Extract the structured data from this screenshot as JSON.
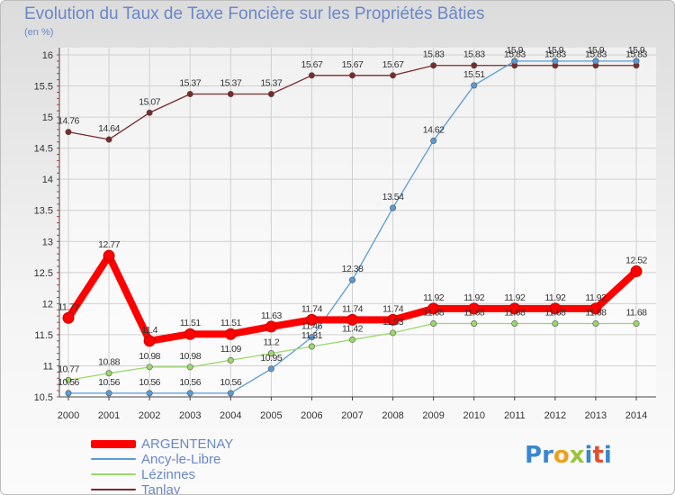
{
  "title": "Evolution du Taux de Taxe Foncière sur les Propriétés Bâties",
  "unit_label": "(en %)",
  "logo": {
    "text": "Proxiti",
    "letters": [
      "P",
      "r",
      "o",
      "x",
      "i",
      "t",
      "i"
    ],
    "colors": [
      "#3a86d1",
      "#3a86d1",
      "#f0a020",
      "#9ac43a",
      "#3a86d1",
      "#e05030",
      "#3a86d1"
    ]
  },
  "chart_data": {
    "type": "line",
    "title": "Evolution du Taux de Taxe Foncière sur les Propriétés Bâties",
    "ylabel": "(en %)",
    "xlabel": "",
    "ylim": [
      10.5,
      16
    ],
    "yticks": [
      10.5,
      11,
      11.5,
      12,
      12.5,
      13,
      13.5,
      14,
      14.5,
      15,
      15.5,
      16
    ],
    "x": [
      2000,
      2001,
      2002,
      2003,
      2004,
      2005,
      2006,
      2007,
      2008,
      2009,
      2010,
      2011,
      2012,
      2013,
      2014
    ],
    "series": [
      {
        "name": "Tanlay",
        "color": "#7a2a2a",
        "values": [
          14.76,
          14.64,
          15.07,
          15.37,
          15.37,
          15.37,
          15.67,
          15.67,
          15.67,
          15.83,
          15.83,
          15.83,
          15.83,
          15.83,
          15.83
        ]
      },
      {
        "name": "Ancy-le-Libre",
        "color": "#5b9bd5",
        "values": [
          10.56,
          10.56,
          10.56,
          10.56,
          10.56,
          10.95,
          11.46,
          12.38,
          13.54,
          14.62,
          15.51,
          15.9,
          15.9,
          15.9,
          15.9
        ]
      },
      {
        "name": "Lézinnes",
        "color": "#9bd86a",
        "values": [
          10.77,
          10.88,
          10.98,
          10.98,
          11.09,
          11.2,
          11.31,
          11.42,
          11.53,
          11.68,
          11.68,
          11.68,
          11.68,
          11.68,
          11.68
        ]
      },
      {
        "name": "ARGENTENAY",
        "color": "#ff0000",
        "values": [
          11.77,
          12.77,
          11.4,
          11.51,
          11.51,
          11.63,
          11.74,
          11.74,
          11.74,
          11.92,
          11.92,
          11.92,
          11.92,
          11.92,
          12.52
        ]
      }
    ],
    "legend": [
      "ARGENTENAY",
      "Ancy-le-Libre",
      "Lézinnes",
      "Tanlay"
    ],
    "legend_position": "bottom-left"
  }
}
